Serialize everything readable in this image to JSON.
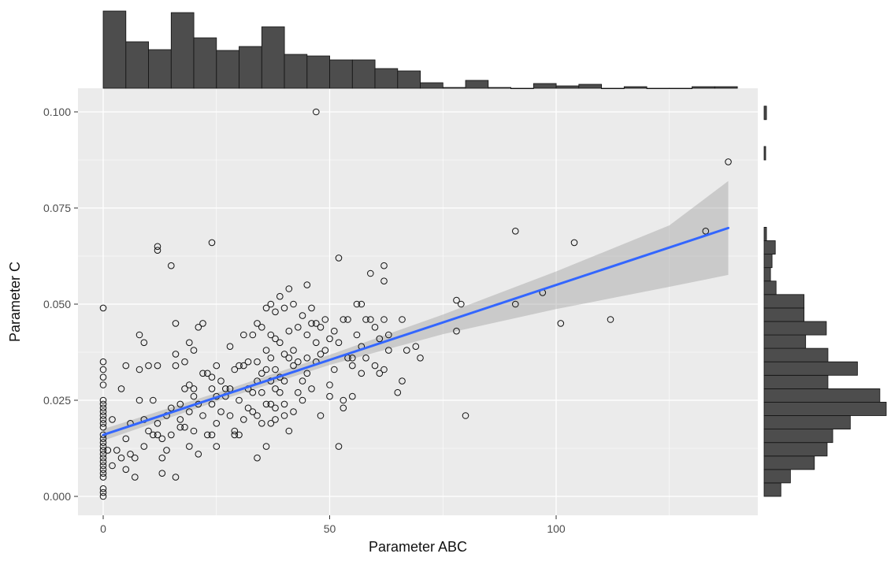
{
  "chart_data": {
    "type": "scatter",
    "xlabel": "Parameter ABC",
    "ylabel": "Parameter C",
    "xlim": [
      -6,
      144
    ],
    "ylim": [
      -0.004,
      0.104
    ],
    "x_ticks": [
      0,
      50,
      100
    ],
    "x_tick_labels": [
      "0",
      "50",
      "100"
    ],
    "y_ticks": [
      0.0,
      0.025,
      0.05,
      0.075,
      0.1
    ],
    "y_tick_labels": [
      "0.000",
      "0.025",
      "0.050",
      "0.075",
      "0.100"
    ],
    "grid": true,
    "background": "#ebebeb",
    "point_color": "#111111",
    "fit_line": {
      "type": "linear",
      "x": [
        0,
        138
      ],
      "y": [
        0.016,
        0.0698
      ],
      "color": "#3366ff"
    },
    "confidence_band": {
      "x": [
        0,
        25,
        50,
        75,
        100,
        125,
        138
      ],
      "lower": [
        0.0145,
        0.0247,
        0.0342,
        0.0422,
        0.0487,
        0.0545,
        0.0576
      ],
      "upper": [
        0.0175,
        0.0269,
        0.0368,
        0.0473,
        0.0585,
        0.0705,
        0.082
      ],
      "color": "#999999"
    },
    "marginal_x_histogram": {
      "bins": [
        0,
        5,
        10,
        15,
        20,
        25,
        30,
        35,
        40,
        45,
        50,
        55,
        60,
        65,
        70,
        75,
        80,
        85,
        90,
        95,
        100,
        105,
        110,
        115,
        120,
        125,
        130,
        135,
        140
      ],
      "counts": [
        98,
        59,
        49,
        96,
        64,
        48,
        53,
        78,
        43,
        41,
        36,
        36,
        25,
        22,
        7,
        1,
        10,
        1,
        0,
        6,
        3,
        5,
        0,
        2,
        0,
        0,
        2,
        2
      ]
    },
    "marginal_y_histogram": {
      "bins": [
        0.0,
        0.0035,
        0.007,
        0.0105,
        0.014,
        0.0175,
        0.021,
        0.0245,
        0.028,
        0.0315,
        0.035,
        0.0385,
        0.042,
        0.0455,
        0.049,
        0.0525,
        0.056,
        0.0595,
        0.063,
        0.0665,
        0.07,
        0.0735,
        0.077,
        0.0805,
        0.084,
        0.0875,
        0.091,
        0.0945,
        0.098,
        0.1015
      ],
      "counts": [
        21,
        33,
        63,
        79,
        86,
        108,
        153,
        145,
        80,
        117,
        80,
        52,
        78,
        50,
        50,
        15,
        8,
        10,
        14,
        3,
        0,
        0,
        0,
        0,
        0,
        2,
        0,
        0,
        3
      ]
    },
    "points": [
      [
        0,
        0.049
      ],
      [
        0,
        0.035
      ],
      [
        0,
        0.033
      ],
      [
        0,
        0.031
      ],
      [
        0,
        0.029
      ],
      [
        0,
        0.025
      ],
      [
        0,
        0.024
      ],
      [
        0,
        0.023
      ],
      [
        0,
        0.022
      ],
      [
        0,
        0.021
      ],
      [
        0,
        0.02
      ],
      [
        0,
        0.019
      ],
      [
        0,
        0.018
      ],
      [
        0,
        0.016
      ],
      [
        0,
        0.015
      ],
      [
        0,
        0.014
      ],
      [
        0,
        0.013
      ],
      [
        0,
        0.012
      ],
      [
        0,
        0.011
      ],
      [
        0,
        0.01
      ],
      [
        0,
        0.009
      ],
      [
        0,
        0.008
      ],
      [
        0,
        0.007
      ],
      [
        0,
        0.006
      ],
      [
        0,
        0.005
      ],
      [
        0,
        0.002
      ],
      [
        0,
        0.001
      ],
      [
        0,
        0.0
      ],
      [
        1,
        0.012
      ],
      [
        2,
        0.02
      ],
      [
        2,
        0.008
      ],
      [
        3,
        0.012
      ],
      [
        4,
        0.028
      ],
      [
        4,
        0.01
      ],
      [
        5,
        0.007
      ],
      [
        5,
        0.015
      ],
      [
        5,
        0.034
      ],
      [
        6,
        0.019
      ],
      [
        6,
        0.011
      ],
      [
        7,
        0.005
      ],
      [
        7,
        0.01
      ],
      [
        8,
        0.025
      ],
      [
        8,
        0.033
      ],
      [
        8,
        0.042
      ],
      [
        9,
        0.04
      ],
      [
        9,
        0.02
      ],
      [
        9,
        0.013
      ],
      [
        10,
        0.017
      ],
      [
        10,
        0.034
      ],
      [
        11,
        0.016
      ],
      [
        11,
        0.025
      ],
      [
        12,
        0.065
      ],
      [
        12,
        0.064
      ],
      [
        12,
        0.034
      ],
      [
        12,
        0.019
      ],
      [
        12,
        0.016
      ],
      [
        13,
        0.01
      ],
      [
        13,
        0.006
      ],
      [
        13,
        0.015
      ],
      [
        14,
        0.021
      ],
      [
        14,
        0.012
      ],
      [
        15,
        0.06
      ],
      [
        15,
        0.023
      ],
      [
        15,
        0.016
      ],
      [
        16,
        0.005
      ],
      [
        16,
        0.037
      ],
      [
        16,
        0.034
      ],
      [
        16,
        0.045
      ],
      [
        17,
        0.024
      ],
      [
        17,
        0.018
      ],
      [
        17,
        0.02
      ],
      [
        18,
        0.035
      ],
      [
        18,
        0.028
      ],
      [
        18,
        0.018
      ],
      [
        19,
        0.04
      ],
      [
        19,
        0.029
      ],
      [
        19,
        0.022
      ],
      [
        19,
        0.013
      ],
      [
        20,
        0.038
      ],
      [
        20,
        0.028
      ],
      [
        20,
        0.026
      ],
      [
        20,
        0.017
      ],
      [
        21,
        0.024
      ],
      [
        21,
        0.011
      ],
      [
        21,
        0.044
      ],
      [
        22,
        0.032
      ],
      [
        22,
        0.021
      ],
      [
        22,
        0.045
      ],
      [
        23,
        0.032
      ],
      [
        23,
        0.016
      ],
      [
        24,
        0.066
      ],
      [
        24,
        0.031
      ],
      [
        24,
        0.028
      ],
      [
        24,
        0.024
      ],
      [
        24,
        0.016
      ],
      [
        25,
        0.034
      ],
      [
        25,
        0.026
      ],
      [
        25,
        0.019
      ],
      [
        25,
        0.013
      ],
      [
        26,
        0.03
      ],
      [
        26,
        0.022
      ],
      [
        27,
        0.028
      ],
      [
        27,
        0.026
      ],
      [
        28,
        0.039
      ],
      [
        28,
        0.028
      ],
      [
        28,
        0.021
      ],
      [
        29,
        0.033
      ],
      [
        29,
        0.017
      ],
      [
        29,
        0.016
      ],
      [
        30,
        0.034
      ],
      [
        30,
        0.025
      ],
      [
        30,
        0.016
      ],
      [
        31,
        0.042
      ],
      [
        31,
        0.034
      ],
      [
        31,
        0.02
      ],
      [
        32,
        0.028
      ],
      [
        32,
        0.023
      ],
      [
        32,
        0.035
      ],
      [
        33,
        0.042
      ],
      [
        33,
        0.027
      ],
      [
        33,
        0.022
      ],
      [
        34,
        0.045
      ],
      [
        34,
        0.035
      ],
      [
        34,
        0.03
      ],
      [
        34,
        0.021
      ],
      [
        34,
        0.01
      ],
      [
        35,
        0.044
      ],
      [
        35,
        0.032
      ],
      [
        35,
        0.027
      ],
      [
        35,
        0.019
      ],
      [
        36,
        0.049
      ],
      [
        36,
        0.038
      ],
      [
        36,
        0.033
      ],
      [
        36,
        0.024
      ],
      [
        36,
        0.013
      ],
      [
        37,
        0.05
      ],
      [
        37,
        0.042
      ],
      [
        37,
        0.036
      ],
      [
        37,
        0.03
      ],
      [
        37,
        0.024
      ],
      [
        37,
        0.019
      ],
      [
        38,
        0.048
      ],
      [
        38,
        0.041
      ],
      [
        38,
        0.033
      ],
      [
        38,
        0.028
      ],
      [
        38,
        0.023
      ],
      [
        38,
        0.02
      ],
      [
        39,
        0.052
      ],
      [
        39,
        0.04
      ],
      [
        39,
        0.031
      ],
      [
        39,
        0.027
      ],
      [
        40,
        0.049
      ],
      [
        40,
        0.037
      ],
      [
        40,
        0.03
      ],
      [
        40,
        0.024
      ],
      [
        40,
        0.021
      ],
      [
        41,
        0.054
      ],
      [
        41,
        0.043
      ],
      [
        41,
        0.036
      ],
      [
        41,
        0.017
      ],
      [
        42,
        0.05
      ],
      [
        42,
        0.038
      ],
      [
        42,
        0.034
      ],
      [
        42,
        0.022
      ],
      [
        43,
        0.044
      ],
      [
        43,
        0.035
      ],
      [
        43,
        0.027
      ],
      [
        44,
        0.047
      ],
      [
        44,
        0.03
      ],
      [
        44,
        0.025
      ],
      [
        45,
        0.055
      ],
      [
        45,
        0.042
      ],
      [
        45,
        0.036
      ],
      [
        45,
        0.032
      ],
      [
        46,
        0.049
      ],
      [
        46,
        0.045
      ],
      [
        46,
        0.028
      ],
      [
        47,
        0.1
      ],
      [
        47,
        0.045
      ],
      [
        47,
        0.04
      ],
      [
        47,
        0.035
      ],
      [
        48,
        0.044
      ],
      [
        48,
        0.037
      ],
      [
        48,
        0.021
      ],
      [
        49,
        0.046
      ],
      [
        49,
        0.038
      ],
      [
        50,
        0.041
      ],
      [
        50,
        0.029
      ],
      [
        50,
        0.026
      ],
      [
        51,
        0.043
      ],
      [
        51,
        0.033
      ],
      [
        52,
        0.062
      ],
      [
        52,
        0.04
      ],
      [
        52,
        0.013
      ],
      [
        53,
        0.046
      ],
      [
        53,
        0.025
      ],
      [
        53,
        0.023
      ],
      [
        54,
        0.046
      ],
      [
        54,
        0.036
      ],
      [
        55,
        0.036
      ],
      [
        55,
        0.034
      ],
      [
        55,
        0.026
      ],
      [
        56,
        0.05
      ],
      [
        56,
        0.042
      ],
      [
        57,
        0.05
      ],
      [
        57,
        0.039
      ],
      [
        57,
        0.032
      ],
      [
        58,
        0.046
      ],
      [
        58,
        0.036
      ],
      [
        59,
        0.058
      ],
      [
        59,
        0.046
      ],
      [
        60,
        0.044
      ],
      [
        60,
        0.034
      ],
      [
        61,
        0.041
      ],
      [
        61,
        0.032
      ],
      [
        62,
        0.06
      ],
      [
        62,
        0.056
      ],
      [
        62,
        0.046
      ],
      [
        62,
        0.033
      ],
      [
        63,
        0.038
      ],
      [
        63,
        0.042
      ],
      [
        65,
        0.027
      ],
      [
        66,
        0.046
      ],
      [
        66,
        0.03
      ],
      [
        67,
        0.038
      ],
      [
        69,
        0.039
      ],
      [
        70,
        0.036
      ],
      [
        78,
        0.051
      ],
      [
        78,
        0.043
      ],
      [
        79,
        0.05
      ],
      [
        80,
        0.021
      ],
      [
        91,
        0.069
      ],
      [
        91,
        0.05
      ],
      [
        97,
        0.053
      ],
      [
        101,
        0.045
      ],
      [
        104,
        0.066
      ],
      [
        112,
        0.046
      ],
      [
        133,
        0.069
      ],
      [
        138,
        0.087
      ]
    ]
  }
}
